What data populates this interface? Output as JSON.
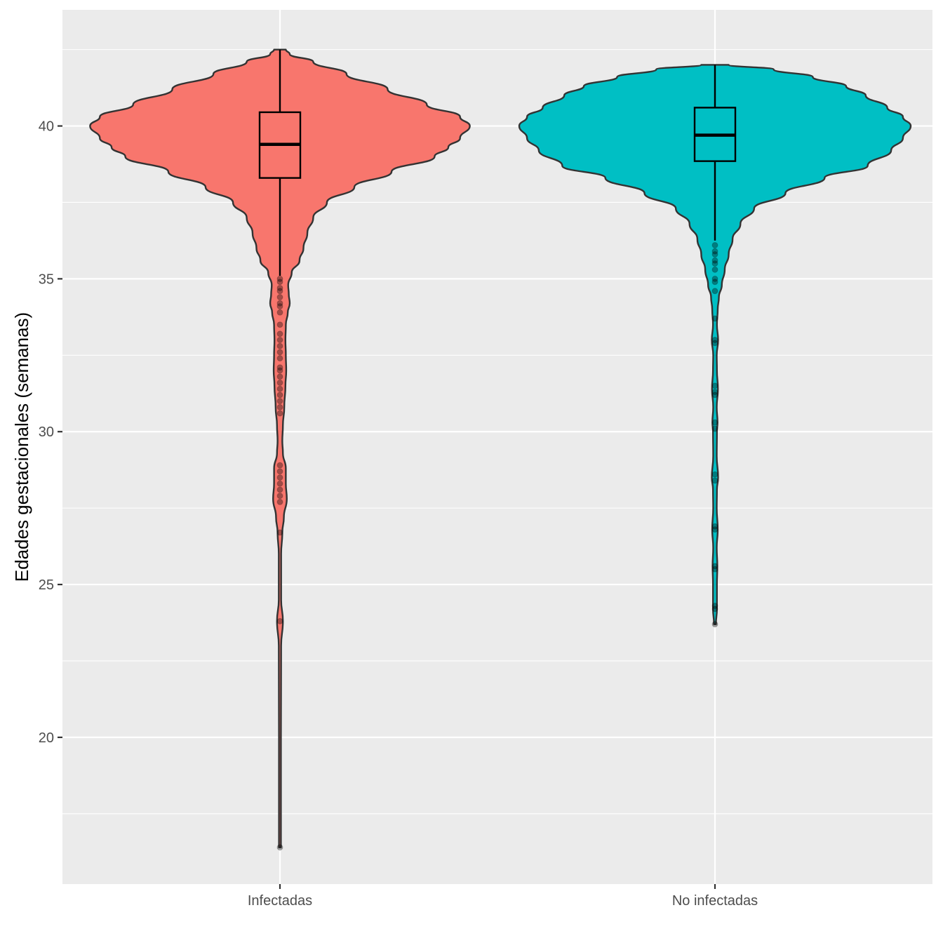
{
  "chart_data": {
    "type": "violin",
    "title": "",
    "xlabel": "",
    "ylabel": "Edades gestacionales (semanas)",
    "ylim": [
      15.2,
      43.8
    ],
    "y_ticks": [
      20,
      25,
      30,
      35,
      40
    ],
    "y_minor_ticks": [
      17.5,
      22.5,
      27.5,
      32.5,
      37.5,
      42.5
    ],
    "grid": true,
    "legend": "none",
    "categories": [
      "Infectadas",
      "No infectadas"
    ],
    "groups": [
      {
        "category": "Infectadas",
        "color": "#F8766D",
        "min": 16.4,
        "max": 42.5,
        "box": {
          "q1": 38.3,
          "median": 39.4,
          "q3": 40.45,
          "whisker_low": 35.1,
          "whisker_high": 42.5
        },
        "density_profile": [
          [
            16.4,
            0.005
          ],
          [
            17.0,
            0.005
          ],
          [
            20.0,
            0.005
          ],
          [
            23.0,
            0.006
          ],
          [
            23.8,
            0.015
          ],
          [
            24.5,
            0.006
          ],
          [
            26.0,
            0.006
          ],
          [
            26.7,
            0.012
          ],
          [
            27.2,
            0.02
          ],
          [
            27.8,
            0.035
          ],
          [
            28.3,
            0.03
          ],
          [
            28.8,
            0.03
          ],
          [
            29.3,
            0.015
          ],
          [
            29.7,
            0.012
          ],
          [
            30.2,
            0.015
          ],
          [
            30.8,
            0.022
          ],
          [
            31.5,
            0.028
          ],
          [
            32.0,
            0.032
          ],
          [
            32.5,
            0.03
          ],
          [
            33.0,
            0.028
          ],
          [
            33.5,
            0.03
          ],
          [
            33.9,
            0.04
          ],
          [
            34.2,
            0.05
          ],
          [
            34.5,
            0.045
          ],
          [
            34.8,
            0.042
          ],
          [
            35.2,
            0.06
          ],
          [
            35.6,
            0.1
          ],
          [
            36.0,
            0.12
          ],
          [
            36.5,
            0.14
          ],
          [
            37.0,
            0.17
          ],
          [
            37.5,
            0.24
          ],
          [
            38.0,
            0.38
          ],
          [
            38.5,
            0.57
          ],
          [
            39.0,
            0.79
          ],
          [
            39.3,
            0.86
          ],
          [
            39.6,
            0.92
          ],
          [
            40.0,
            0.97
          ],
          [
            40.3,
            0.92
          ],
          [
            40.7,
            0.75
          ],
          [
            41.2,
            0.55
          ],
          [
            41.7,
            0.34
          ],
          [
            42.1,
            0.17
          ],
          [
            42.35,
            0.05
          ],
          [
            42.5,
            0.03
          ]
        ],
        "outliers": [
          35.0,
          34.9,
          34.7,
          34.6,
          34.4,
          34.2,
          34.1,
          33.9,
          33.5,
          33.2,
          33.0,
          32.8,
          32.6,
          32.4,
          32.1,
          32.0,
          31.8,
          31.6,
          31.4,
          31.2,
          31.0,
          30.8,
          30.6,
          28.9,
          28.7,
          28.5,
          28.3,
          28.1,
          27.9,
          27.7,
          26.7,
          23.8,
          16.4
        ]
      },
      {
        "category": "No infectadas",
        "color": "#00BFC4",
        "min": 23.7,
        "max": 42.0,
        "box": {
          "q1": 38.85,
          "median": 39.7,
          "q3": 40.6,
          "whisker_low": 36.25,
          "whisker_high": 42.0
        },
        "density_profile": [
          [
            23.7,
            0.005
          ],
          [
            24.2,
            0.01
          ],
          [
            25.0,
            0.01
          ],
          [
            25.6,
            0.012
          ],
          [
            26.2,
            0.009
          ],
          [
            26.8,
            0.014
          ],
          [
            27.5,
            0.009
          ],
          [
            28.1,
            0.01
          ],
          [
            28.5,
            0.016
          ],
          [
            29.2,
            0.009
          ],
          [
            30.0,
            0.01
          ],
          [
            30.3,
            0.013
          ],
          [
            30.8,
            0.009
          ],
          [
            31.4,
            0.015
          ],
          [
            32.0,
            0.01
          ],
          [
            32.5,
            0.009
          ],
          [
            33.0,
            0.016
          ],
          [
            33.5,
            0.01
          ],
          [
            34.0,
            0.014
          ],
          [
            34.4,
            0.02
          ],
          [
            34.8,
            0.035
          ],
          [
            35.3,
            0.05
          ],
          [
            35.8,
            0.07
          ],
          [
            36.3,
            0.09
          ],
          [
            36.8,
            0.13
          ],
          [
            37.3,
            0.2
          ],
          [
            37.8,
            0.36
          ],
          [
            38.3,
            0.56
          ],
          [
            38.7,
            0.78
          ],
          [
            39.2,
            0.9
          ],
          [
            39.6,
            0.96
          ],
          [
            40.0,
            1.0
          ],
          [
            40.3,
            0.96
          ],
          [
            40.6,
            0.88
          ],
          [
            41.0,
            0.77
          ],
          [
            41.3,
            0.67
          ],
          [
            41.6,
            0.5
          ],
          [
            41.85,
            0.3
          ],
          [
            42.0,
            0.07
          ]
        ],
        "outliers": [
          36.1,
          35.9,
          35.8,
          35.6,
          35.5,
          35.3,
          35.0,
          34.9,
          34.6,
          33.7,
          33.0,
          32.9,
          31.5,
          31.3,
          31.2,
          30.3,
          30.1,
          28.6,
          28.4,
          26.9,
          26.8,
          25.6,
          25.5,
          24.3,
          24.2,
          23.7
        ]
      }
    ]
  }
}
